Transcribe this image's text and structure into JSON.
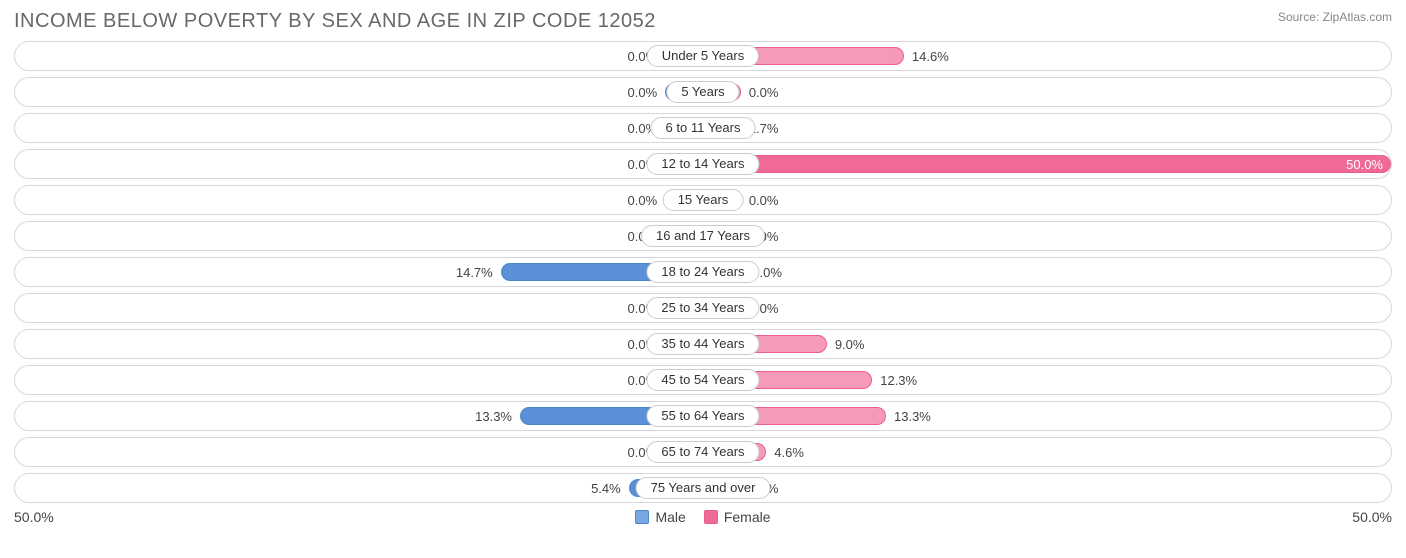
{
  "title": "INCOME BELOW POVERTY BY SEX AND AGE IN ZIP CODE 12052",
  "source": "Source: ZipAtlas.com",
  "axis_max": 50.0,
  "axis_left_label": "50.0%",
  "axis_right_label": "50.0%",
  "colors": {
    "male_fill": "#79a7e0",
    "male_fill_dark": "#5b8fd6",
    "male_border": "#4f85cc",
    "female_fill": "#f59bb8",
    "female_fill_dark": "#ef6a98",
    "female_border": "#e85f90",
    "track_border": "#d8d8d8",
    "pill_border": "#cccccc",
    "text": "#444444",
    "title_color": "#686868",
    "source_color": "#888888",
    "background": "#ffffff"
  },
  "min_bar_pct": 5.5,
  "label_fontsize": 13,
  "title_fontsize": 20,
  "legend": {
    "male": "Male",
    "female": "Female"
  },
  "rows": [
    {
      "label": "Under 5 Years",
      "male": 0.0,
      "female": 14.6,
      "male_txt": "0.0%",
      "female_txt": "14.6%"
    },
    {
      "label": "5 Years",
      "male": 0.0,
      "female": 0.0,
      "male_txt": "0.0%",
      "female_txt": "0.0%"
    },
    {
      "label": "6 to 11 Years",
      "male": 0.0,
      "female": 1.7,
      "male_txt": "0.0%",
      "female_txt": "1.7%"
    },
    {
      "label": "12 to 14 Years",
      "male": 0.0,
      "female": 50.0,
      "male_txt": "0.0%",
      "female_txt": "50.0%"
    },
    {
      "label": "15 Years",
      "male": 0.0,
      "female": 0.0,
      "male_txt": "0.0%",
      "female_txt": "0.0%"
    },
    {
      "label": "16 and 17 Years",
      "male": 0.0,
      "female": 0.0,
      "male_txt": "0.0%",
      "female_txt": "0.0%"
    },
    {
      "label": "18 to 24 Years",
      "male": 14.7,
      "female": 3.0,
      "male_txt": "14.7%",
      "female_txt": "3.0%"
    },
    {
      "label": "25 to 34 Years",
      "male": 0.0,
      "female": 0.0,
      "male_txt": "0.0%",
      "female_txt": "0.0%"
    },
    {
      "label": "35 to 44 Years",
      "male": 0.0,
      "female": 9.0,
      "male_txt": "0.0%",
      "female_txt": "9.0%"
    },
    {
      "label": "45 to 54 Years",
      "male": 0.0,
      "female": 12.3,
      "male_txt": "0.0%",
      "female_txt": "12.3%"
    },
    {
      "label": "55 to 64 Years",
      "male": 13.3,
      "female": 13.3,
      "male_txt": "13.3%",
      "female_txt": "13.3%"
    },
    {
      "label": "65 to 74 Years",
      "male": 0.0,
      "female": 4.6,
      "male_txt": "0.0%",
      "female_txt": "4.6%"
    },
    {
      "label": "75 Years and over",
      "male": 5.4,
      "female": 0.0,
      "male_txt": "5.4%",
      "female_txt": "0.0%"
    }
  ]
}
